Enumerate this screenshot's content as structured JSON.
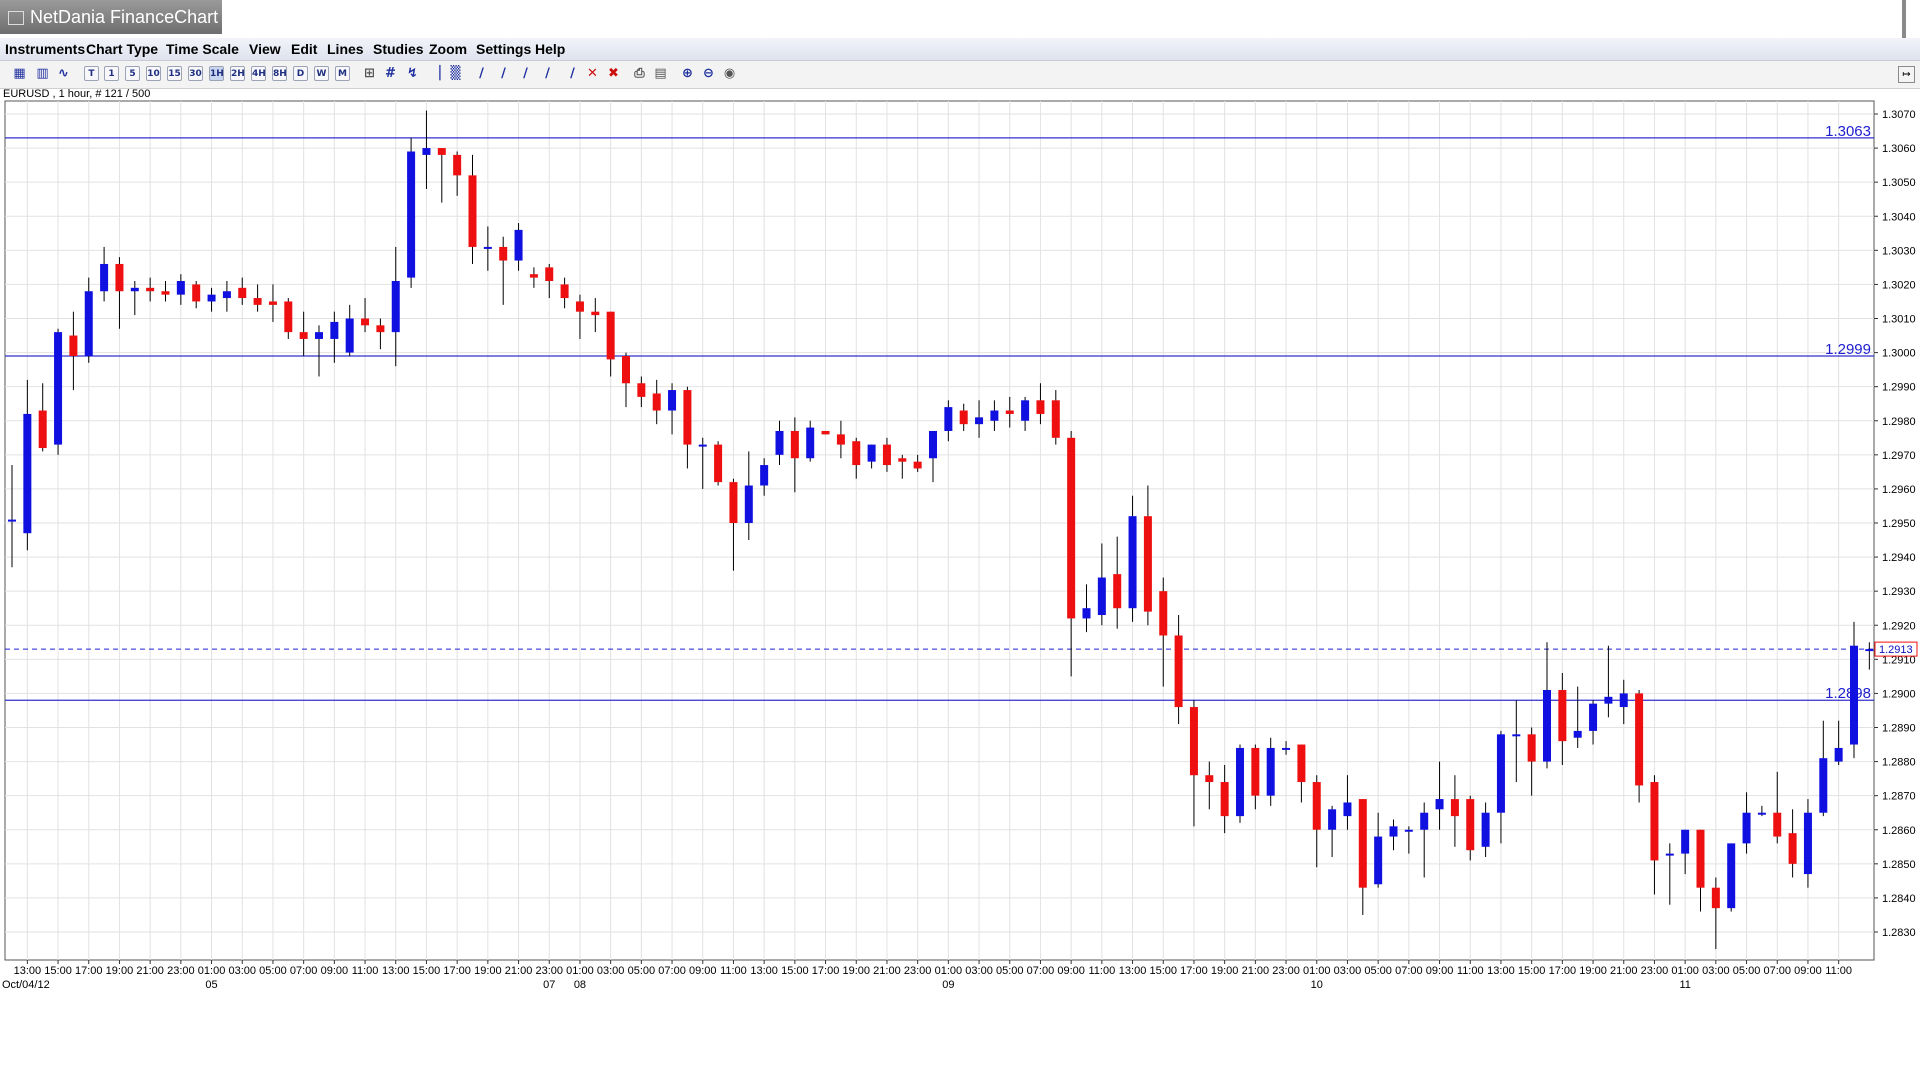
{
  "app": {
    "title": "NetDania FinanceChart"
  },
  "menu": [
    "Instruments",
    "Chart Type",
    "Time Scale",
    "View",
    "Edit",
    "Lines",
    "Studies",
    "Zoom",
    "Settings",
    "Help"
  ],
  "toolbar": {
    "timescale_buttons": [
      "T",
      "1",
      "5",
      "10",
      "15",
      "30",
      "1H",
      "2H",
      "4H",
      "8H",
      "D",
      "W",
      "M"
    ],
    "active_timescale": "1H",
    "icons": [
      "cursor-icon",
      "zoom-box-icon",
      "line-chart-icon",
      "crosshair-icon",
      "grid-icon",
      "arrow-icon",
      "bar-chart-icon",
      "candlestick-icon",
      "trendline-icon",
      "delete-icon",
      "delete-all-icon",
      "print-icon",
      "print-preview-icon",
      "zoom-in-icon",
      "zoom-out-icon",
      "zoom-reset-icon"
    ]
  },
  "instrument_info": "EURUSD , 1 hour, # 121 / 500",
  "chart_data": {
    "type": "candlestick",
    "title": "",
    "xlabel": "",
    "ylabel": "",
    "ylim": [
      1.2825,
      1.3075
    ],
    "y_ticks": [
      "1.2830",
      "1.2840",
      "1.2850",
      "1.2860",
      "1.2870",
      "1.2880",
      "1.2890",
      "1.2900",
      "1.2910",
      "1.2920",
      "1.2930",
      "1.2940",
      "1.2950",
      "1.2960",
      "1.2970",
      "1.2980",
      "1.2990",
      "1.3000",
      "1.3010",
      "1.3020",
      "1.3030",
      "1.3040",
      "1.3050",
      "1.3060",
      "1.3070"
    ],
    "x_tick_labels": [
      "13:00",
      "15:00",
      "17:00",
      "19:00",
      "21:00",
      "23:00",
      "01:00",
      "03:00",
      "05:00",
      "07:00",
      "09:00",
      "11:00",
      "13:00",
      "15:00",
      "17:00",
      "19:00",
      "21:00",
      "23:00",
      "01:00",
      "03:00",
      "05:00",
      "07:00",
      "09:00",
      "11:00",
      "13:00",
      "15:00",
      "17:00",
      "19:00",
      "21:00",
      "23:00",
      "01:00",
      "03:00",
      "05:00",
      "07:00",
      "09:00",
      "11:00",
      "13:00",
      "15:00",
      "17:00",
      "19:00",
      "21:00",
      "23:00",
      "01:00",
      "03:00",
      "05:00",
      "07:00",
      "09:00",
      "11:00",
      "13:00",
      "15:00",
      "17:00",
      "19:00",
      "21:00",
      "23:00",
      "01:00",
      "03:00",
      "05:00",
      "07:00",
      "09:00",
      "11:00"
    ],
    "date_labels": [
      {
        "text": "Oct/04/12",
        "index": 0
      },
      {
        "text": "05",
        "index": 13
      },
      {
        "text": "07",
        "index": 35
      },
      {
        "text": "08",
        "index": 37
      },
      {
        "text": "09",
        "index": 61
      },
      {
        "text": "10",
        "index": 85
      },
      {
        "text": "11",
        "index": 109
      }
    ],
    "grid": true,
    "up_color": "#1010e0",
    "down_color": "#ee1010",
    "horizontal_lines": [
      {
        "value": 1.3063,
        "label": "1.3063"
      },
      {
        "value": 1.2999,
        "label": "1.2999"
      },
      {
        "value": 1.2898,
        "label": "1.2898"
      }
    ],
    "last_price": 1.2913,
    "last_price_label": "1.2913",
    "candles": [
      {
        "o": 1.2951,
        "h": 1.2967,
        "l": 1.2937,
        "c": 1.2951
      },
      {
        "o": 1.2947,
        "h": 1.2992,
        "l": 1.2942,
        "c": 1.2982
      },
      {
        "o": 1.2983,
        "h": 1.2991,
        "l": 1.2971,
        "c": 1.2972
      },
      {
        "o": 1.2973,
        "h": 1.3007,
        "l": 1.297,
        "c": 1.3006
      },
      {
        "o": 1.3005,
        "h": 1.3012,
        "l": 1.2989,
        "c": 1.2999
      },
      {
        "o": 1.2999,
        "h": 1.3022,
        "l": 1.2997,
        "c": 1.3018
      },
      {
        "o": 1.3018,
        "h": 1.3031,
        "l": 1.3015,
        "c": 1.3026
      },
      {
        "o": 1.3026,
        "h": 1.3028,
        "l": 1.3007,
        "c": 1.3018
      },
      {
        "o": 1.3018,
        "h": 1.3021,
        "l": 1.3011,
        "c": 1.3019
      },
      {
        "o": 1.3019,
        "h": 1.3022,
        "l": 1.3015,
        "c": 1.3018
      },
      {
        "o": 1.3018,
        "h": 1.3021,
        "l": 1.3015,
        "c": 1.3017
      },
      {
        "o": 1.3017,
        "h": 1.3023,
        "l": 1.3014,
        "c": 1.3021
      },
      {
        "o": 1.302,
        "h": 1.3021,
        "l": 1.3013,
        "c": 1.3015
      },
      {
        "o": 1.3015,
        "h": 1.3019,
        "l": 1.3012,
        "c": 1.3017
      },
      {
        "o": 1.3016,
        "h": 1.3021,
        "l": 1.3012,
        "c": 1.3018
      },
      {
        "o": 1.3019,
        "h": 1.3022,
        "l": 1.3014,
        "c": 1.3016
      },
      {
        "o": 1.3016,
        "h": 1.302,
        "l": 1.3012,
        "c": 1.3014
      },
      {
        "o": 1.3015,
        "h": 1.302,
        "l": 1.3009,
        "c": 1.3014
      },
      {
        "o": 1.3015,
        "h": 1.3016,
        "l": 1.3004,
        "c": 1.3006
      },
      {
        "o": 1.3006,
        "h": 1.3012,
        "l": 1.2999,
        "c": 1.3004
      },
      {
        "o": 1.3004,
        "h": 1.3008,
        "l": 1.2993,
        "c": 1.3006
      },
      {
        "o": 1.3004,
        "h": 1.3012,
        "l": 1.2997,
        "c": 1.3009
      },
      {
        "o": 1.3,
        "h": 1.3014,
        "l": 1.2999,
        "c": 1.301
      },
      {
        "o": 1.301,
        "h": 1.3016,
        "l": 1.3006,
        "c": 1.3008
      },
      {
        "o": 1.3008,
        "h": 1.301,
        "l": 1.3001,
        "c": 1.3006
      },
      {
        "o": 1.3006,
        "h": 1.3031,
        "l": 1.2996,
        "c": 1.3021
      },
      {
        "o": 1.3022,
        "h": 1.3063,
        "l": 1.3019,
        "c": 1.3059
      },
      {
        "o": 1.3058,
        "h": 1.3071,
        "l": 1.3048,
        "c": 1.306
      },
      {
        "o": 1.306,
        "h": 1.306,
        "l": 1.3044,
        "c": 1.3058
      },
      {
        "o": 1.3058,
        "h": 1.3059,
        "l": 1.3046,
        "c": 1.3052
      },
      {
        "o": 1.3052,
        "h": 1.3058,
        "l": 1.3026,
        "c": 1.3031
      },
      {
        "o": 1.3031,
        "h": 1.3037,
        "l": 1.3024,
        "c": 1.3031
      },
      {
        "o": 1.3031,
        "h": 1.3034,
        "l": 1.3014,
        "c": 1.3027
      },
      {
        "o": 1.3027,
        "h": 1.3038,
        "l": 1.3024,
        "c": 1.3036
      },
      {
        "o": 1.3023,
        "h": 1.3025,
        "l": 1.3019,
        "c": 1.3022
      },
      {
        "o": 1.3025,
        "h": 1.3026,
        "l": 1.3016,
        "c": 1.3021
      },
      {
        "o": 1.302,
        "h": 1.3022,
        "l": 1.3013,
        "c": 1.3016
      },
      {
        "o": 1.3015,
        "h": 1.3017,
        "l": 1.3004,
        "c": 1.3012
      },
      {
        "o": 1.3012,
        "h": 1.3016,
        "l": 1.3006,
        "c": 1.3011
      },
      {
        "o": 1.3012,
        "h": 1.3012,
        "l": 1.2993,
        "c": 1.2998
      },
      {
        "o": 1.2999,
        "h": 1.3,
        "l": 1.2984,
        "c": 1.2991
      },
      {
        "o": 1.2991,
        "h": 1.2993,
        "l": 1.2984,
        "c": 1.2987
      },
      {
        "o": 1.2988,
        "h": 1.2992,
        "l": 1.2979,
        "c": 1.2983
      },
      {
        "o": 1.2983,
        "h": 1.2991,
        "l": 1.2976,
        "c": 1.2989
      },
      {
        "o": 1.2989,
        "h": 1.299,
        "l": 1.2966,
        "c": 1.2973
      },
      {
        "o": 1.2973,
        "h": 1.2975,
        "l": 1.296,
        "c": 1.2973
      },
      {
        "o": 1.2973,
        "h": 1.2974,
        "l": 1.2961,
        "c": 1.2962
      },
      {
        "o": 1.2962,
        "h": 1.2963,
        "l": 1.2936,
        "c": 1.295
      },
      {
        "o": 1.295,
        "h": 1.2971,
        "l": 1.2945,
        "c": 1.2961
      },
      {
        "o": 1.2961,
        "h": 1.2969,
        "l": 1.2958,
        "c": 1.2967
      },
      {
        "o": 1.297,
        "h": 1.298,
        "l": 1.2967,
        "c": 1.2977
      },
      {
        "o": 1.2977,
        "h": 1.2981,
        "l": 1.2959,
        "c": 1.2969
      },
      {
        "o": 1.2969,
        "h": 1.298,
        "l": 1.2968,
        "c": 1.2978
      },
      {
        "o": 1.2977,
        "h": 1.2977,
        "l": 1.2976,
        "c": 1.2976
      },
      {
        "o": 1.2976,
        "h": 1.298,
        "l": 1.2969,
        "c": 1.2973
      },
      {
        "o": 1.2974,
        "h": 1.2975,
        "l": 1.2963,
        "c": 1.2967
      },
      {
        "o": 1.2968,
        "h": 1.2973,
        "l": 1.2966,
        "c": 1.2973
      },
      {
        "o": 1.2973,
        "h": 1.2975,
        "l": 1.2965,
        "c": 1.2967
      },
      {
        "o": 1.2969,
        "h": 1.297,
        "l": 1.2963,
        "c": 1.2968
      },
      {
        "o": 1.2968,
        "h": 1.297,
        "l": 1.2965,
        "c": 1.2966
      },
      {
        "o": 1.2969,
        "h": 1.2977,
        "l": 1.2962,
        "c": 1.2977
      },
      {
        "o": 1.2977,
        "h": 1.2986,
        "l": 1.2974,
        "c": 1.2984
      },
      {
        "o": 1.2983,
        "h": 1.2985,
        "l": 1.2977,
        "c": 1.2979
      },
      {
        "o": 1.2979,
        "h": 1.2986,
        "l": 1.2975,
        "c": 1.2981
      },
      {
        "o": 1.298,
        "h": 1.2986,
        "l": 1.2977,
        "c": 1.2983
      },
      {
        "o": 1.2983,
        "h": 1.2987,
        "l": 1.2978,
        "c": 1.2982
      },
      {
        "o": 1.298,
        "h": 1.2987,
        "l": 1.2977,
        "c": 1.2986
      },
      {
        "o": 1.2986,
        "h": 1.2991,
        "l": 1.2979,
        "c": 1.2982
      },
      {
        "o": 1.2986,
        "h": 1.2989,
        "l": 1.2973,
        "c": 1.2975
      },
      {
        "o": 1.2975,
        "h": 1.2977,
        "l": 1.2905,
        "c": 1.2922
      },
      {
        "o": 1.2922,
        "h": 1.2932,
        "l": 1.2918,
        "c": 1.2925
      },
      {
        "o": 1.2923,
        "h": 1.2944,
        "l": 1.292,
        "c": 1.2934
      },
      {
        "o": 1.2935,
        "h": 1.2946,
        "l": 1.2919,
        "c": 1.2925
      },
      {
        "o": 1.2925,
        "h": 1.2958,
        "l": 1.2921,
        "c": 1.2952
      },
      {
        "o": 1.2952,
        "h": 1.2961,
        "l": 1.292,
        "c": 1.2924
      },
      {
        "o": 1.293,
        "h": 1.2934,
        "l": 1.2902,
        "c": 1.2917
      },
      {
        "o": 1.2917,
        "h": 1.2923,
        "l": 1.2891,
        "c": 1.2896
      },
      {
        "o": 1.2896,
        "h": 1.2898,
        "l": 1.2861,
        "c": 1.2876
      },
      {
        "o": 1.2876,
        "h": 1.288,
        "l": 1.2866,
        "c": 1.2874
      },
      {
        "o": 1.2874,
        "h": 1.2879,
        "l": 1.2859,
        "c": 1.2864
      },
      {
        "o": 1.2864,
        "h": 1.2885,
        "l": 1.2862,
        "c": 1.2884
      },
      {
        "o": 1.2884,
        "h": 1.2885,
        "l": 1.2866,
        "c": 1.287
      },
      {
        "o": 1.287,
        "h": 1.2887,
        "l": 1.2867,
        "c": 1.2884
      },
      {
        "o": 1.2884,
        "h": 1.2886,
        "l": 1.2882,
        "c": 1.2884
      },
      {
        "o": 1.2885,
        "h": 1.2885,
        "l": 1.2868,
        "c": 1.2874
      },
      {
        "o": 1.2874,
        "h": 1.2876,
        "l": 1.2849,
        "c": 1.286
      },
      {
        "o": 1.286,
        "h": 1.2867,
        "l": 1.2852,
        "c": 1.2866
      },
      {
        "o": 1.2864,
        "h": 1.2876,
        "l": 1.286,
        "c": 1.2868
      },
      {
        "o": 1.2869,
        "h": 1.2869,
        "l": 1.2835,
        "c": 1.2843
      },
      {
        "o": 1.2844,
        "h": 1.2865,
        "l": 1.2843,
        "c": 1.2858
      },
      {
        "o": 1.2858,
        "h": 1.2863,
        "l": 1.2854,
        "c": 1.2861
      },
      {
        "o": 1.286,
        "h": 1.2861,
        "l": 1.2853,
        "c": 1.286
      },
      {
        "o": 1.286,
        "h": 1.2868,
        "l": 1.2846,
        "c": 1.2865
      },
      {
        "o": 1.2866,
        "h": 1.288,
        "l": 1.286,
        "c": 1.2869
      },
      {
        "o": 1.2869,
        "h": 1.2876,
        "l": 1.2855,
        "c": 1.2864
      },
      {
        "o": 1.2869,
        "h": 1.287,
        "l": 1.2851,
        "c": 1.2854
      },
      {
        "o": 1.2855,
        "h": 1.2868,
        "l": 1.2852,
        "c": 1.2865
      },
      {
        "o": 1.2865,
        "h": 1.2889,
        "l": 1.2856,
        "c": 1.2888
      },
      {
        "o": 1.2888,
        "h": 1.2898,
        "l": 1.2874,
        "c": 1.2888
      },
      {
        "o": 1.2888,
        "h": 1.289,
        "l": 1.287,
        "c": 1.288
      },
      {
        "o": 1.288,
        "h": 1.2915,
        "l": 1.2878,
        "c": 1.2901
      },
      {
        "o": 1.2901,
        "h": 1.2906,
        "l": 1.2879,
        "c": 1.2886
      },
      {
        "o": 1.2887,
        "h": 1.2902,
        "l": 1.2884,
        "c": 1.2889
      },
      {
        "o": 1.2889,
        "h": 1.2898,
        "l": 1.2885,
        "c": 1.2897
      },
      {
        "o": 1.2897,
        "h": 1.2914,
        "l": 1.2893,
        "c": 1.2899
      },
      {
        "o": 1.2896,
        "h": 1.2904,
        "l": 1.2891,
        "c": 1.29
      },
      {
        "o": 1.29,
        "h": 1.2901,
        "l": 1.2868,
        "c": 1.2873
      },
      {
        "o": 1.2874,
        "h": 1.2876,
        "l": 1.2841,
        "c": 1.2851
      },
      {
        "o": 1.2853,
        "h": 1.2856,
        "l": 1.2838,
        "c": 1.2853
      },
      {
        "o": 1.2853,
        "h": 1.286,
        "l": 1.2847,
        "c": 1.286
      },
      {
        "o": 1.286,
        "h": 1.286,
        "l": 1.2836,
        "c": 1.2843
      },
      {
        "o": 1.2843,
        "h": 1.2846,
        "l": 1.2825,
        "c": 1.2837
      },
      {
        "o": 1.2837,
        "h": 1.2856,
        "l": 1.2836,
        "c": 1.2856
      },
      {
        "o": 1.2856,
        "h": 1.2871,
        "l": 1.2853,
        "c": 1.2865
      },
      {
        "o": 1.2865,
        "h": 1.2867,
        "l": 1.2864,
        "c": 1.2865
      },
      {
        "o": 1.2865,
        "h": 1.2877,
        "l": 1.2856,
        "c": 1.2858
      },
      {
        "o": 1.2859,
        "h": 1.2866,
        "l": 1.2846,
        "c": 1.285
      },
      {
        "o": 1.2847,
        "h": 1.2869,
        "l": 1.2843,
        "c": 1.2865
      },
      {
        "o": 1.2865,
        "h": 1.2892,
        "l": 1.2864,
        "c": 1.2881
      },
      {
        "o": 1.288,
        "h": 1.2892,
        "l": 1.2879,
        "c": 1.2884
      },
      {
        "o": 1.2885,
        "h": 1.2921,
        "l": 1.2881,
        "c": 1.2914
      },
      {
        "o": 1.2913,
        "h": 1.2915,
        "l": 1.2907,
        "c": 1.2913
      }
    ]
  }
}
